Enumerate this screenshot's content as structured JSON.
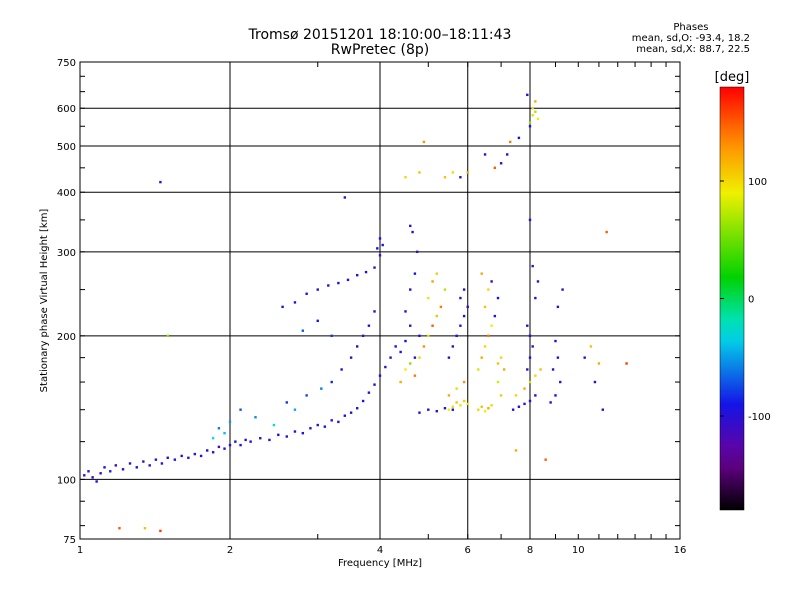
{
  "header": {
    "title_line1": "Tromsø 20151201 18:10:00–18:11:43",
    "title_line2": "RwPretec (8p)"
  },
  "stats": {
    "heading": "Phases",
    "line_o": "mean, sd,O: -93.4, 18.2",
    "line_x": "mean, sd,X:  88.7, 22.5"
  },
  "colorbar": {
    "label": "[deg]",
    "ticks": [
      {
        "value": 100,
        "label": "100"
      },
      {
        "value": 0,
        "label": "0"
      },
      {
        "value": -100,
        "label": "-100"
      }
    ],
    "range": [
      -180,
      180
    ]
  },
  "chart_data": {
    "type": "scatter",
    "title": "Tromsø 20151201 18:10:00–18:11:43",
    "subtitle": "RwPretec (8p)",
    "xlabel": "Frequency [MHz]",
    "ylabel": "Stationary phase Virtual Height [km]",
    "xscale": "log",
    "yscale": "log",
    "xlim": [
      1,
      16
    ],
    "ylim": [
      75,
      750
    ],
    "x_ticks": [
      {
        "v": 1,
        "l": "1"
      },
      {
        "v": 2,
        "l": "2"
      },
      {
        "v": 4,
        "l": "4"
      },
      {
        "v": 6,
        "l": "6"
      },
      {
        "v": 8,
        "l": "8"
      },
      {
        "v": 10,
        "l": "10"
      },
      {
        "v": 16,
        "l": "16"
      }
    ],
    "y_ticks": [
      {
        "v": 75,
        "l": "75"
      },
      {
        "v": 100,
        "l": "100"
      },
      {
        "v": 200,
        "l": "200"
      },
      {
        "v": 300,
        "l": "300"
      },
      {
        "v": 400,
        "l": "400"
      },
      {
        "v": 500,
        "l": "500"
      },
      {
        "v": 600,
        "l": "600"
      },
      {
        "v": 750,
        "l": "750"
      }
    ],
    "grid_x": [
      2,
      4,
      6,
      8
    ],
    "grid_y": [
      100,
      200,
      300,
      400,
      500,
      600
    ],
    "color_scale": "phase in degrees (rainbow, -180 to 180)",
    "points": [
      [
        1.02,
        102,
        -100
      ],
      [
        1.04,
        104,
        -95
      ],
      [
        1.06,
        101,
        -110
      ],
      [
        1.08,
        99,
        -90
      ],
      [
        1.1,
        103,
        -105
      ],
      [
        1.12,
        106,
        -100
      ],
      [
        1.15,
        104,
        -85
      ],
      [
        1.18,
        107,
        -110
      ],
      [
        1.22,
        105,
        -95
      ],
      [
        1.26,
        108,
        -100
      ],
      [
        1.3,
        106,
        -90
      ],
      [
        1.34,
        109,
        -110
      ],
      [
        1.38,
        107,
        -100
      ],
      [
        1.42,
        110,
        -95
      ],
      [
        1.46,
        108,
        -105
      ],
      [
        1.5,
        111,
        -100
      ],
      [
        1.55,
        110,
        -90
      ],
      [
        1.6,
        112,
        -110
      ],
      [
        1.65,
        111,
        -100
      ],
      [
        1.7,
        113,
        -95
      ],
      [
        1.75,
        112,
        -105
      ],
      [
        1.8,
        115,
        -90
      ],
      [
        1.85,
        114,
        -100
      ],
      [
        1.9,
        117,
        -110
      ],
      [
        1.95,
        116,
        -95
      ],
      [
        2.0,
        118,
        -100
      ],
      [
        2.05,
        120,
        -90
      ],
      [
        2.1,
        118,
        -105
      ],
      [
        2.15,
        121,
        -100
      ],
      [
        2.2,
        120,
        -95
      ],
      [
        2.3,
        122,
        -110
      ],
      [
        2.4,
        121,
        -100
      ],
      [
        2.5,
        124,
        -90
      ],
      [
        2.6,
        123,
        -105
      ],
      [
        2.7,
        126,
        -100
      ],
      [
        2.8,
        125,
        -95
      ],
      [
        2.9,
        128,
        -110
      ],
      [
        3.0,
        130,
        -100
      ],
      [
        3.1,
        129,
        -90
      ],
      [
        3.2,
        133,
        -105
      ],
      [
        3.3,
        132,
        -100
      ],
      [
        3.4,
        136,
        -95
      ],
      [
        3.5,
        138,
        -110
      ],
      [
        3.6,
        141,
        -100
      ],
      [
        3.7,
        146,
        -90
      ],
      [
        3.8,
        152,
        -105
      ],
      [
        3.9,
        158,
        -100
      ],
      [
        4.0,
        165,
        -95
      ],
      [
        4.1,
        172,
        -110
      ],
      [
        4.2,
        180,
        -100
      ],
      [
        4.3,
        190,
        -90
      ],
      [
        1.9,
        128,
        -60
      ],
      [
        2.0,
        132,
        -50
      ],
      [
        1.95,
        125,
        -40
      ],
      [
        2.1,
        140,
        -70
      ],
      [
        1.85,
        122,
        -30
      ],
      [
        2.25,
        135,
        -55
      ],
      [
        2.45,
        130,
        -20
      ],
      [
        2.6,
        145,
        -80
      ],
      [
        2.7,
        140,
        -45
      ],
      [
        2.85,
        150,
        -75
      ],
      [
        3.05,
        155,
        -60
      ],
      [
        3.2,
        160,
        -85
      ],
      [
        3.35,
        170,
        -95
      ],
      [
        3.5,
        180,
        -100
      ],
      [
        3.6,
        190,
        -105
      ],
      [
        3.7,
        200,
        -110
      ],
      [
        3.8,
        210,
        -95
      ],
      [
        3.9,
        225,
        -100
      ],
      [
        2.55,
        230,
        -90
      ],
      [
        2.7,
        235,
        -100
      ],
      [
        2.85,
        245,
        -95
      ],
      [
        3.0,
        250,
        -105
      ],
      [
        3.15,
        255,
        -100
      ],
      [
        3.3,
        258,
        -90
      ],
      [
        3.45,
        262,
        -110
      ],
      [
        3.6,
        268,
        -95
      ],
      [
        3.75,
        272,
        -100
      ],
      [
        3.9,
        278,
        -105
      ],
      [
        4.0,
        295,
        -110
      ],
      [
        4.05,
        310,
        -100
      ],
      [
        4.0,
        320,
        -95
      ],
      [
        3.95,
        305,
        -90
      ],
      [
        3.4,
        390,
        -100
      ],
      [
        1.45,
        420,
        -100
      ],
      [
        3.2,
        200,
        -80
      ],
      [
        2.8,
        205,
        -70
      ],
      [
        3.0,
        215,
        -90
      ],
      [
        4.4,
        185,
        -100
      ],
      [
        4.5,
        195,
        -90
      ],
      [
        4.6,
        210,
        -110
      ],
      [
        4.7,
        180,
        -100
      ],
      [
        4.8,
        200,
        -95
      ],
      [
        4.5,
        225,
        -105
      ],
      [
        4.6,
        250,
        -100
      ],
      [
        4.7,
        270,
        -90
      ],
      [
        4.75,
        300,
        -110
      ],
      [
        4.6,
        340,
        -100
      ],
      [
        4.65,
        330,
        -95
      ],
      [
        4.4,
        160,
        120
      ],
      [
        4.5,
        170,
        90
      ],
      [
        4.6,
        175,
        60
      ],
      [
        4.7,
        165,
        140
      ],
      [
        4.8,
        180,
        100
      ],
      [
        4.9,
        190,
        130
      ],
      [
        5.0,
        200,
        80
      ],
      [
        5.1,
        210,
        150
      ],
      [
        5.2,
        220,
        110
      ],
      [
        5.0,
        240,
        95
      ],
      [
        5.1,
        260,
        125
      ],
      [
        5.3,
        230,
        140
      ],
      [
        5.4,
        250,
        70
      ],
      [
        5.2,
        270,
        105
      ],
      [
        5.5,
        140,
        90
      ],
      [
        5.6,
        142,
        100
      ],
      [
        5.7,
        145,
        110
      ],
      [
        5.8,
        143,
        95
      ],
      [
        5.9,
        146,
        105
      ],
      [
        6.0,
        144,
        100
      ],
      [
        5.5,
        150,
        120
      ],
      [
        5.7,
        155,
        80
      ],
      [
        5.9,
        160,
        130
      ],
      [
        4.8,
        138,
        -100
      ],
      [
        5.0,
        140,
        -95
      ],
      [
        5.2,
        139,
        -110
      ],
      [
        5.4,
        141,
        -100
      ],
      [
        5.6,
        140,
        -90
      ],
      [
        5.5,
        180,
        -100
      ],
      [
        5.6,
        190,
        -110
      ],
      [
        5.7,
        200,
        -95
      ],
      [
        5.8,
        210,
        -100
      ],
      [
        5.9,
        220,
        -90
      ],
      [
        5.8,
        240,
        -105
      ],
      [
        5.9,
        250,
        -100
      ],
      [
        6.0,
        230,
        -110
      ],
      [
        5.4,
        430,
        110
      ],
      [
        5.6,
        440,
        100
      ],
      [
        5.8,
        430,
        -100
      ],
      [
        6.0,
        440,
        120
      ],
      [
        4.5,
        430,
        100
      ],
      [
        4.8,
        440,
        110
      ],
      [
        4.9,
        510,
        130
      ],
      [
        6.3,
        140,
        100
      ],
      [
        6.4,
        142,
        110
      ],
      [
        6.5,
        139,
        90
      ],
      [
        6.6,
        141,
        120
      ],
      [
        6.7,
        143,
        100
      ],
      [
        6.3,
        170,
        80
      ],
      [
        6.4,
        180,
        120
      ],
      [
        6.5,
        190,
        100
      ],
      [
        6.6,
        200,
        140
      ],
      [
        6.7,
        210,
        90
      ],
      [
        6.5,
        230,
        110
      ],
      [
        6.6,
        250,
        100
      ],
      [
        6.4,
        270,
        120
      ],
      [
        6.8,
        220,
        -100
      ],
      [
        6.9,
        240,
        -90
      ],
      [
        6.7,
        260,
        -110
      ],
      [
        6.9,
        175,
        110
      ],
      [
        7.0,
        180,
        100
      ],
      [
        7.1,
        170,
        120
      ],
      [
        6.9,
        160,
        80
      ],
      [
        7.0,
        150,
        105
      ],
      [
        7.4,
        140,
        -100
      ],
      [
        7.6,
        142,
        -90
      ],
      [
        7.8,
        144,
        -110
      ],
      [
        8.0,
        146,
        -100
      ],
      [
        8.2,
        150,
        -95
      ],
      [
        7.5,
        150,
        100
      ],
      [
        7.8,
        155,
        120
      ],
      [
        8.0,
        160,
        80
      ],
      [
        8.2,
        165,
        100
      ],
      [
        8.4,
        170,
        110
      ],
      [
        7.9,
        170,
        -100
      ],
      [
        8.0,
        180,
        -90
      ],
      [
        8.1,
        190,
        -110
      ],
      [
        8.0,
        200,
        -100
      ],
      [
        7.9,
        210,
        -95
      ],
      [
        8.2,
        240,
        -105
      ],
      [
        8.3,
        260,
        -100
      ],
      [
        8.1,
        280,
        -110
      ],
      [
        8.0,
        350,
        -100
      ],
      [
        8.0,
        560,
        60
      ],
      [
        8.1,
        580,
        80
      ],
      [
        8.2,
        590,
        70
      ],
      [
        8.3,
        570,
        90
      ],
      [
        8.1,
        600,
        100
      ],
      [
        8.2,
        620,
        120
      ],
      [
        7.9,
        640,
        -100
      ],
      [
        8.0,
        550,
        -100
      ],
      [
        7.6,
        520,
        -90
      ],
      [
        7.2,
        480,
        -100
      ],
      [
        7.3,
        510,
        140
      ],
      [
        6.8,
        450,
        150
      ],
      [
        6.5,
        480,
        -100
      ],
      [
        7.0,
        460,
        -110
      ],
      [
        8.8,
        145,
        -100
      ],
      [
        9.0,
        150,
        -90
      ],
      [
        9.2,
        160,
        -110
      ],
      [
        8.9,
        170,
        -100
      ],
      [
        9.1,
        180,
        -95
      ],
      [
        9.0,
        195,
        -100
      ],
      [
        9.3,
        250,
        -100
      ],
      [
        9.1,
        230,
        -110
      ],
      [
        10.3,
        180,
        -100
      ],
      [
        10.6,
        190,
        110
      ],
      [
        11.0,
        175,
        120
      ],
      [
        11.2,
        140,
        -100
      ],
      [
        10.8,
        160,
        -100
      ],
      [
        11.4,
        330,
        150
      ],
      [
        12.5,
        175,
        160
      ],
      [
        8.6,
        110,
        150
      ],
      [
        7.5,
        115,
        120
      ],
      [
        1.2,
        79,
        150
      ],
      [
        1.35,
        79,
        110
      ],
      [
        1.45,
        78,
        160
      ],
      [
        1.5,
        200,
        60
      ]
    ]
  }
}
